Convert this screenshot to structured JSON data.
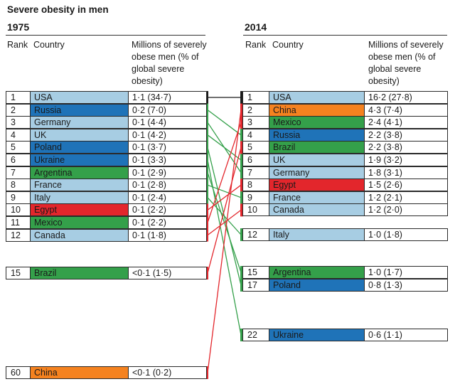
{
  "title": "Severe obesity in men",
  "colors": {
    "light_blue": "#a7cde3",
    "dark_blue": "#1f73b8",
    "green": "#34a04a",
    "red": "#e3262c",
    "orange": "#f5821f",
    "black": "#1a1a1a"
  },
  "left": {
    "year": "1975",
    "headers": {
      "rank": "Rank",
      "country": "Country",
      "value": "Millions of severely obese men (% of global severe obesity)"
    }
  },
  "right": {
    "year": "2014",
    "headers": {
      "rank": "Rank",
      "country": "Country",
      "value": "Millions of severely obese men (% of global severe obesity)"
    }
  },
  "chart_data": {
    "type": "table",
    "title": "Severe obesity in men",
    "rows_1975": [
      {
        "rank": "1",
        "country": "USA",
        "value": "1·1 (34·7)",
        "color": "light_blue"
      },
      {
        "rank": "2",
        "country": "Russia",
        "value": "0·2 (7·0)",
        "color": "dark_blue"
      },
      {
        "rank": "3",
        "country": "Germany",
        "value": "0·1 (4·4)",
        "color": "light_blue"
      },
      {
        "rank": "4",
        "country": "UK",
        "value": "0·1 (4·2)",
        "color": "light_blue"
      },
      {
        "rank": "5",
        "country": "Poland",
        "value": "0·1 (3·7)",
        "color": "dark_blue"
      },
      {
        "rank": "6",
        "country": "Ukraine",
        "value": "0·1 (3·3)",
        "color": "dark_blue"
      },
      {
        "rank": "7",
        "country": "Argentina",
        "value": "0·1 (2·9)",
        "color": "green"
      },
      {
        "rank": "8",
        "country": "France",
        "value": "0·1 (2·8)",
        "color": "light_blue"
      },
      {
        "rank": "9",
        "country": "Italy",
        "value": "0·1 (2·4)",
        "color": "light_blue"
      },
      {
        "rank": "10",
        "country": "Egypt",
        "value": "0·1 (2·2)",
        "color": "red"
      },
      {
        "rank": "11",
        "country": "Mexico",
        "value": "0·1 (2·2)",
        "color": "green"
      },
      {
        "rank": "12",
        "country": "Canada",
        "value": "0·1 (1·8)",
        "color": "light_blue"
      },
      {
        "rank": "15",
        "country": "Brazil",
        "value": "<0·1 (1·5)",
        "color": "green"
      },
      {
        "rank": "60",
        "country": "China",
        "value": "<0·1 (0·2)",
        "color": "orange"
      }
    ],
    "rows_2014": [
      {
        "rank": "1",
        "country": "USA",
        "value": "16·2 (27·8)",
        "color": "light_blue"
      },
      {
        "rank": "2",
        "country": "China",
        "value": "4·3 (7·4)",
        "color": "orange"
      },
      {
        "rank": "3",
        "country": "Mexico",
        "value": "2·4 (4·1)",
        "color": "green"
      },
      {
        "rank": "4",
        "country": "Russia",
        "value": "2·2 (3·8)",
        "color": "dark_blue"
      },
      {
        "rank": "5",
        "country": "Brazil",
        "value": "2·2 (3·8)",
        "color": "green"
      },
      {
        "rank": "6",
        "country": "UK",
        "value": "1·9 (3·2)",
        "color": "light_blue"
      },
      {
        "rank": "7",
        "country": "Germany",
        "value": "1·8 (3·1)",
        "color": "light_blue"
      },
      {
        "rank": "8",
        "country": "Egypt",
        "value": "1·5 (2·6)",
        "color": "red"
      },
      {
        "rank": "9",
        "country": "France",
        "value": "1·2 (2·1)",
        "color": "light_blue"
      },
      {
        "rank": "10",
        "country": "Canada",
        "value": "1·2 (2·0)",
        "color": "light_blue"
      },
      {
        "rank": "12",
        "country": "Italy",
        "value": "1·0 (1·8)",
        "color": "light_blue"
      },
      {
        "rank": "15",
        "country": "Argentina",
        "value": "1·0 (1·7)",
        "color": "green"
      },
      {
        "rank": "17",
        "country": "Poland",
        "value": "0·8 (1·3)",
        "color": "dark_blue"
      },
      {
        "rank": "22",
        "country": "Ukraine",
        "value": "0·6 (1·1)",
        "color": "dark_blue"
      }
    ],
    "links": [
      {
        "country": "USA",
        "color": "black"
      },
      {
        "country": "Russia",
        "color": "green"
      },
      {
        "country": "Germany",
        "color": "green"
      },
      {
        "country": "UK",
        "color": "green"
      },
      {
        "country": "Poland",
        "color": "green"
      },
      {
        "country": "Ukraine",
        "color": "green"
      },
      {
        "country": "Argentina",
        "color": "green"
      },
      {
        "country": "France",
        "color": "green"
      },
      {
        "country": "Italy",
        "color": "green"
      },
      {
        "country": "Egypt",
        "color": "red"
      },
      {
        "country": "Mexico",
        "color": "red"
      },
      {
        "country": "Canada",
        "color": "red"
      },
      {
        "country": "Brazil",
        "color": "red"
      },
      {
        "country": "China",
        "color": "red"
      }
    ]
  }
}
